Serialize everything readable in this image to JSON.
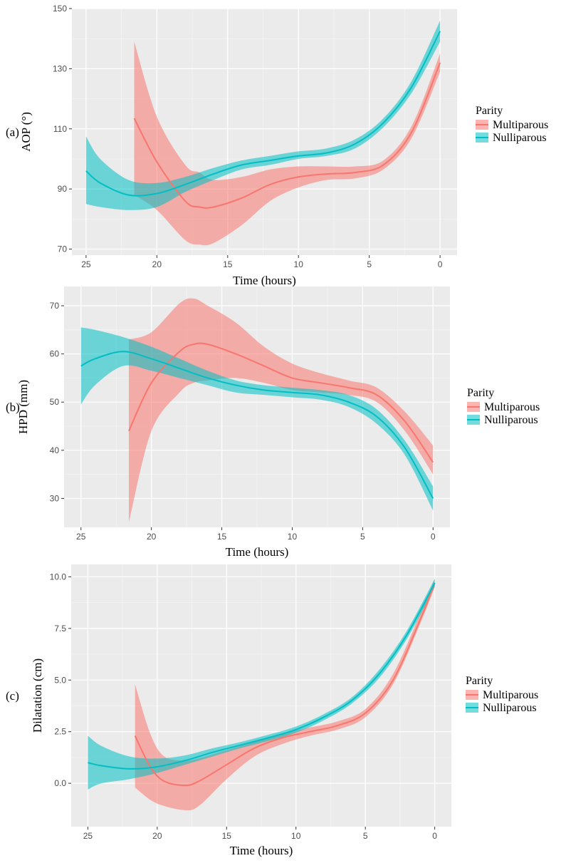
{
  "chart_data": [
    {
      "type": "line",
      "panel_label": "(a)",
      "xlabel": "Time (hours)",
      "ylabel": "AOP (°)",
      "xlim": [
        26,
        -1.2
      ],
      "ylim": [
        68,
        150
      ],
      "x_ticks": [
        25,
        20,
        15,
        10,
        5,
        0
      ],
      "y_ticks": [
        70,
        90,
        110,
        130,
        150
      ],
      "grid": true,
      "legend": {
        "title": "Parity",
        "position": "right"
      },
      "series": [
        {
          "name": "Multiparous",
          "color": "#F8766D",
          "band_color": "#F8766D",
          "x": [
            21.6,
            20,
            18,
            17,
            16,
            14,
            12,
            10,
            8,
            6,
            4,
            2,
            0
          ],
          "y": [
            113.5,
            99,
            86,
            84,
            84,
            87,
            91.5,
            94,
            95,
            95.5,
            98,
            109,
            132
          ],
          "lower": [
            88,
            83,
            73,
            71.5,
            72,
            78,
            86,
            90.5,
            93,
            93.5,
            96.5,
            107,
            129
          ],
          "upper": [
            139,
            114,
            98,
            95.5,
            93,
            94,
            96.5,
            97.5,
            97.5,
            97.5,
            99.5,
            111,
            135
          ]
        },
        {
          "name": "Nulliparous",
          "color": "#00BFC4",
          "band_color": "#00BFC4",
          "x": [
            25,
            24,
            22,
            20,
            18,
            16,
            14,
            12,
            10,
            8,
            6,
            4,
            2,
            0
          ],
          "y": [
            96,
            92,
            88,
            88.5,
            91.5,
            95,
            98,
            99.5,
            101,
            102,
            105,
            112,
            124,
            142.5
          ],
          "lower": [
            85,
            84,
            83,
            84,
            89,
            93,
            96.5,
            98,
            100,
            101,
            103.5,
            110.5,
            122,
            139
          ],
          "upper": [
            107.5,
            100,
            93,
            92,
            94,
            97,
            99.5,
            101,
            102.5,
            103.5,
            106.5,
            113.5,
            126,
            146
          ]
        }
      ]
    },
    {
      "type": "line",
      "panel_label": "(b)",
      "xlabel": "Time (hours)",
      "ylabel": "HPD (mm)",
      "xlim": [
        26.2,
        -1.2
      ],
      "ylim": [
        24,
        74
      ],
      "x_ticks": [
        25,
        20,
        15,
        10,
        5,
        0
      ],
      "y_ticks": [
        30,
        40,
        50,
        60,
        70
      ],
      "grid": true,
      "legend": {
        "title": "Parity",
        "position": "right"
      },
      "series": [
        {
          "name": "Multiparous",
          "color": "#F8766D",
          "band_color": "#F8766D",
          "x": [
            21.6,
            20,
            18,
            17,
            16,
            14,
            12,
            10,
            8,
            6,
            4,
            2,
            0
          ],
          "y": [
            44,
            54,
            60.5,
            62,
            62,
            60,
            57.5,
            55,
            54,
            53,
            51.5,
            46,
            37.5
          ],
          "lower": [
            25,
            44,
            52,
            54,
            54.5,
            55,
            54,
            52.5,
            52,
            51.5,
            50,
            44,
            35
          ],
          "upper": [
            63,
            64.5,
            70.5,
            71.5,
            70,
            66.5,
            61.5,
            58,
            56,
            54.5,
            53,
            48,
            41
          ]
        },
        {
          "name": "Nulliparous",
          "color": "#00BFC4",
          "band_color": "#00BFC4",
          "x": [
            25,
            24,
            22,
            20,
            18,
            16,
            14,
            12,
            10,
            8,
            6,
            4,
            2,
            0
          ],
          "y": [
            57.5,
            59,
            60.5,
            59,
            57,
            55,
            53.5,
            52.5,
            52,
            51.5,
            50,
            47,
            40.5,
            30
          ],
          "lower": [
            49.5,
            53.5,
            57.5,
            56.5,
            55,
            53.5,
            52,
            51.5,
            51,
            50.5,
            49,
            45.5,
            39,
            27.5
          ],
          "upper": [
            65.5,
            65,
            63.5,
            61.5,
            59,
            56.5,
            54.5,
            53.5,
            53,
            52.5,
            51.5,
            48.5,
            42,
            32.5
          ]
        }
      ]
    },
    {
      "type": "line",
      "panel_label": "(c)",
      "xlabel": "Time (hours)",
      "ylabel": "Dilatation (cm)",
      "xlim": [
        26.2,
        -1.2
      ],
      "ylim": [
        -2.1,
        10.6
      ],
      "x_ticks": [
        25,
        20,
        15,
        10,
        5,
        0
      ],
      "y_ticks": [
        0.0,
        2.5,
        5.0,
        7.5,
        10.0
      ],
      "y_tick_labels": [
        "0.0",
        "2.5",
        "5.0",
        "7.5",
        "10.0"
      ],
      "grid": true,
      "legend": {
        "title": "Parity",
        "position": "right"
      },
      "series": [
        {
          "name": "Multiparous",
          "color": "#F8766D",
          "band_color": "#F8766D",
          "x": [
            21.6,
            20.5,
            19.5,
            18,
            17,
            15,
            13,
            11,
            9,
            7,
            5,
            3,
            1,
            0
          ],
          "y": [
            2.3,
            0.8,
            0.1,
            -0.1,
            0.1,
            0.9,
            1.7,
            2.2,
            2.5,
            2.8,
            3.4,
            5.0,
            8.0,
            9.7
          ],
          "lower": [
            -0.2,
            -0.8,
            -1.1,
            -1.3,
            -1.1,
            0.2,
            1.3,
            1.9,
            2.3,
            2.6,
            3.2,
            4.8,
            7.8,
            9.5
          ],
          "upper": [
            4.8,
            2.4,
            1.3,
            1.1,
            1.2,
            1.6,
            2.0,
            2.4,
            2.7,
            3.0,
            3.6,
            5.3,
            8.3,
            9.9
          ]
        },
        {
          "name": "Nulliparous",
          "color": "#00BFC4",
          "band_color": "#00BFC4",
          "x": [
            25,
            24,
            22,
            20,
            18,
            16,
            14,
            12,
            10,
            8,
            6,
            4,
            2,
            0
          ],
          "y": [
            1.0,
            0.85,
            0.7,
            0.8,
            1.1,
            1.5,
            1.85,
            2.2,
            2.6,
            3.2,
            4.0,
            5.3,
            7.2,
            9.7
          ],
          "lower": [
            -0.3,
            0.0,
            0.2,
            0.5,
            0.9,
            1.3,
            1.7,
            2.05,
            2.45,
            3.05,
            3.85,
            5.1,
            7.0,
            9.5
          ],
          "upper": [
            2.3,
            1.8,
            1.3,
            1.2,
            1.35,
            1.7,
            2.0,
            2.35,
            2.75,
            3.35,
            4.15,
            5.5,
            7.4,
            9.9
          ]
        }
      ]
    }
  ]
}
